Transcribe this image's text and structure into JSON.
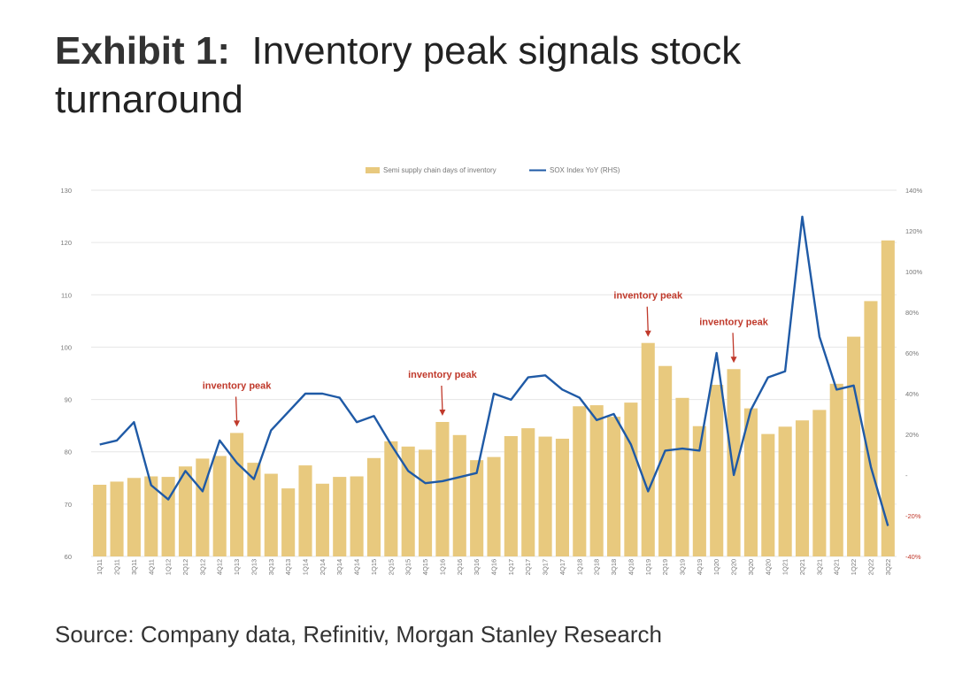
{
  "title": {
    "exhibit": "Exhibit 1:",
    "text": "Inventory peak signals stock turnaround"
  },
  "source": "Source: Company data, Refinitiv, Morgan Stanley Research",
  "colors": {
    "bar": "#e8c97e",
    "line": "#1f5aa6",
    "annotation": "#c0392b",
    "grid": "#e6e6e6"
  },
  "chart_data": {
    "type": "bar",
    "categories": [
      "1Q11",
      "2Q11",
      "3Q11",
      "4Q11",
      "1Q12",
      "2Q12",
      "3Q12",
      "4Q12",
      "1Q13",
      "2Q13",
      "3Q13",
      "4Q13",
      "1Q14",
      "2Q14",
      "3Q14",
      "4Q14",
      "1Q15",
      "2Q15",
      "3Q15",
      "4Q15",
      "1Q16",
      "2Q16",
      "3Q16",
      "4Q16",
      "1Q17",
      "2Q17",
      "3Q17",
      "4Q17",
      "1Q18",
      "2Q18",
      "3Q18",
      "4Q18",
      "1Q19",
      "2Q19",
      "3Q19",
      "4Q19",
      "1Q20",
      "2Q20",
      "3Q20",
      "4Q20",
      "1Q21",
      "2Q21",
      "3Q21",
      "4Q21",
      "1Q22",
      "2Q22",
      "3Q22"
    ],
    "series": [
      {
        "name": "Semi supply chain days of inventory",
        "type": "bar",
        "axis": "left",
        "values": [
          73.7,
          74.3,
          75.0,
          75.3,
          75.2,
          77.2,
          78.7,
          79.2,
          83.6,
          77.9,
          75.8,
          73.0,
          77.4,
          73.9,
          75.2,
          75.3,
          78.8,
          82.0,
          81.0,
          80.4,
          85.7,
          83.2,
          78.4,
          79.0,
          83.0,
          84.5,
          82.9,
          82.5,
          88.7,
          88.9,
          86.7,
          89.4,
          100.8,
          96.4,
          90.3,
          84.9,
          92.8,
          95.8,
          88.3,
          83.4,
          84.8,
          86.0,
          88.0,
          93.0,
          102.0,
          108.8,
          120.4
        ]
      },
      {
        "name": "SOX Index YoY (RHS)",
        "type": "line",
        "axis": "right",
        "values": [
          15,
          17,
          26,
          -5,
          -12,
          2,
          -8,
          17,
          6,
          -2,
          22,
          31,
          40,
          40,
          38,
          26,
          29,
          15,
          2,
          -4,
          -3,
          -1,
          1,
          40,
          37,
          48,
          49,
          42,
          38,
          27,
          30,
          15,
          -8,
          12,
          13,
          12,
          60,
          0,
          32,
          48,
          51,
          127,
          68,
          42,
          44,
          4,
          -25
        ]
      }
    ],
    "yleft": {
      "min": 60,
      "max": 130,
      "ticks": [
        "60",
        "70",
        "80",
        "90",
        "100",
        "110",
        "120",
        "130"
      ]
    },
    "yright": {
      "min": -40,
      "max": 140,
      "ticks": [
        "-40%",
        "-20%",
        "-",
        "20%",
        "40%",
        "60%",
        "80%",
        "100%",
        "120%",
        "140%"
      ]
    },
    "grid": true,
    "legend_position": "top-center",
    "annotations": [
      {
        "text": "inventory peak",
        "category": "1Q13"
      },
      {
        "text": "inventory peak",
        "category": "1Q16"
      },
      {
        "text": "inventory peak",
        "category": "1Q19"
      },
      {
        "text": "inventory peak",
        "category": "2Q20"
      }
    ]
  }
}
